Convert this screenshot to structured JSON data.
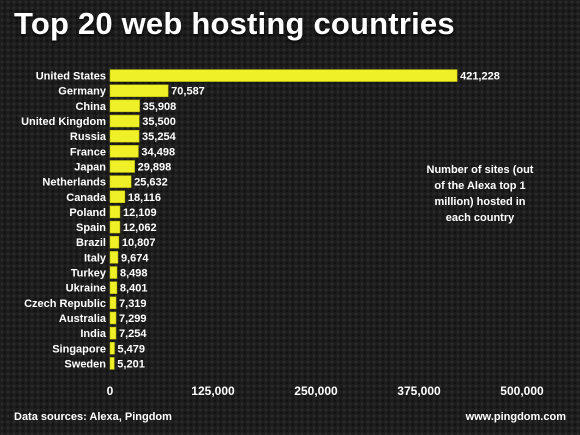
{
  "title": "Top 20 web hosting countries",
  "annotation": "Number of sites (out of the Alexa top 1 million) hosted in each country",
  "footer": {
    "sources": "Data sources: Alexa, Pingdom",
    "site": "www.pingdom.com"
  },
  "colors": {
    "bar": "#f0f028",
    "background": "#1c1c1c",
    "text": "#ffffff"
  },
  "chart_data": {
    "type": "bar",
    "orientation": "horizontal",
    "title": "Top 20 web hosting countries",
    "categories": [
      "United States",
      "Germany",
      "China",
      "United Kingdom",
      "Russia",
      "France",
      "Japan",
      "Netherlands",
      "Canada",
      "Poland",
      "Spain",
      "Brazil",
      "Italy",
      "Turkey",
      "Ukraine",
      "Czech Republic",
      "Australia",
      "India",
      "Singapore",
      "Sweden"
    ],
    "values": [
      421228,
      70587,
      35908,
      35500,
      35254,
      34498,
      29898,
      25632,
      18116,
      12109,
      12062,
      10807,
      9674,
      8498,
      8401,
      7319,
      7299,
      7254,
      5479,
      5201
    ],
    "value_labels": [
      "421,228",
      "70,587",
      "35,908",
      "35,500",
      "35,254",
      "34,498",
      "29,898",
      "25,632",
      "18,116",
      "12,109",
      "12,062",
      "10,807",
      "9,674",
      "8,498",
      "8,401",
      "7,319",
      "7,299",
      "7,254",
      "5,479",
      "5,201"
    ],
    "xlim": [
      0,
      500000
    ],
    "xticks": [
      0,
      125000,
      250000,
      375000,
      500000
    ],
    "xtick_labels": [
      "0",
      "125,000",
      "250,000",
      "375,000",
      "500,000"
    ],
    "grid": false,
    "legend": "none"
  }
}
